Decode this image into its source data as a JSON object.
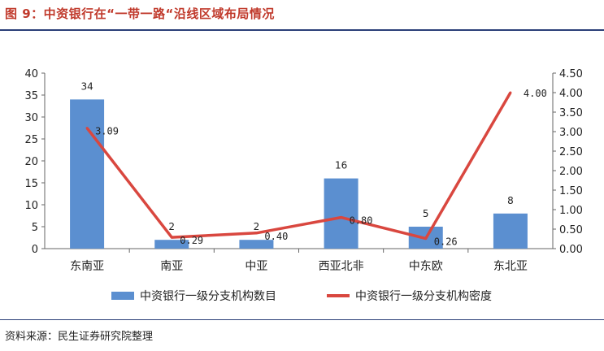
{
  "title": "图 9：中资银行在“一带一路“沿线区域布局情况",
  "source": "资料来源：民生证券研究院整理",
  "colors": {
    "bar": "#5b8fd0",
    "line": "#d9473f",
    "title": "#c0392b",
    "rule": "#2b3f78"
  },
  "chart_data": {
    "type": "bar",
    "categories": [
      "东南亚",
      "南亚",
      "中亚",
      "西亚北非",
      "中东欧",
      "东北亚"
    ],
    "series": [
      {
        "name": "中资银行一级分支机构数目",
        "type": "bar",
        "axis": "left",
        "values": [
          34,
          2,
          2,
          16,
          5,
          8
        ],
        "labels": [
          "34",
          "2",
          "2",
          "16",
          "5",
          "8"
        ]
      },
      {
        "name": "中资银行一级分支机构密度",
        "type": "line",
        "axis": "right",
        "values": [
          3.09,
          0.29,
          0.4,
          0.8,
          0.26,
          4.0
        ],
        "labels": [
          "3.09",
          "0.29",
          "0.40",
          "0.80",
          "0.26",
          "4.00"
        ]
      }
    ],
    "y_left": {
      "min": 0,
      "max": 40,
      "ticks": [
        "0",
        "5",
        "10",
        "15",
        "20",
        "25",
        "30",
        "35",
        "40"
      ]
    },
    "y_right": {
      "min": 0,
      "max": 4.5,
      "ticks": [
        "0.00",
        "0.50",
        "1.00",
        "1.50",
        "2.00",
        "2.50",
        "3.00",
        "3.50",
        "4.00",
        "4.50"
      ]
    },
    "legend": "bottom"
  }
}
